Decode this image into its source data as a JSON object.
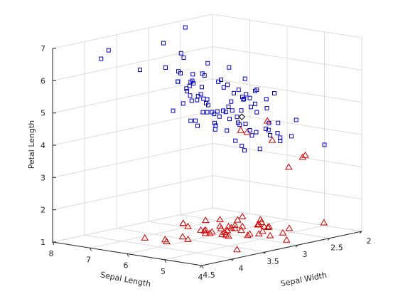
{
  "chart_data": {
    "type": "scatter",
    "title": "",
    "xlabel": "Sepal Width",
    "ylabel": "Sepal Length",
    "zlabel": "Petal Length",
    "xlim": [
      2,
      4.5
    ],
    "ylim": [
      4,
      8
    ],
    "zlim": [
      1,
      7
    ],
    "xticks": [
      "2",
      "2.5",
      "3",
      "3.5",
      "4",
      "4.5"
    ],
    "yticks": [
      "4",
      "5",
      "6",
      "7",
      "8"
    ],
    "zticks": [
      "1",
      "2",
      "3",
      "4",
      "5",
      "6",
      "7"
    ],
    "grid": true,
    "colors": {
      "series_a": "#d40000",
      "series_b": "#0000c8",
      "marker_c": "#000000",
      "axes": "#262626",
      "grid": "#dcdcdc"
    },
    "series": [
      {
        "marker": "triangle",
        "color": "#d40000",
        "points": [
          [
            2.3,
            4.5,
            1.3
          ],
          [
            3.0,
            4.4,
            1.3
          ],
          [
            3.2,
            4.4,
            1.3
          ],
          [
            2.9,
            4.4,
            1.4
          ],
          [
            3.6,
            4.6,
            1.0
          ],
          [
            3.1,
            4.6,
            1.5
          ],
          [
            3.4,
            4.6,
            1.4
          ],
          [
            3.2,
            4.6,
            1.4
          ],
          [
            3.0,
            4.8,
            1.4
          ],
          [
            3.4,
            4.8,
            1.6
          ],
          [
            3.4,
            4.8,
            1.9
          ],
          [
            3.1,
            4.8,
            1.6
          ],
          [
            3.0,
            4.9,
            1.4
          ],
          [
            3.1,
            4.9,
            1.5
          ],
          [
            3.6,
            4.9,
            1.4
          ],
          [
            3.5,
            5.0,
            1.6
          ],
          [
            3.3,
            5.0,
            1.4
          ],
          [
            3.2,
            5.0,
            1.2
          ],
          [
            3.0,
            5.0,
            1.6
          ],
          [
            3.4,
            5.0,
            1.5
          ],
          [
            3.4,
            5.0,
            1.6
          ],
          [
            3.5,
            5.1,
            1.4
          ],
          [
            3.8,
            5.1,
            1.5
          ],
          [
            3.7,
            5.1,
            1.5
          ],
          [
            3.3,
            5.1,
            1.7
          ],
          [
            3.8,
            5.1,
            1.9
          ],
          [
            3.5,
            5.2,
            1.5
          ],
          [
            3.4,
            5.2,
            1.4
          ],
          [
            3.7,
            5.3,
            1.5
          ],
          [
            3.4,
            5.4,
            1.5
          ],
          [
            3.9,
            5.4,
            1.3
          ],
          [
            3.7,
            5.4,
            1.5
          ],
          [
            3.4,
            5.4,
            1.7
          ],
          [
            3.9,
            5.4,
            1.7
          ],
          [
            4.2,
            5.5,
            1.4
          ],
          [
            3.5,
            5.5,
            1.3
          ],
          [
            3.8,
            5.7,
            1.7
          ],
          [
            4.4,
            5.7,
            1.5
          ],
          [
            4.0,
            5.8,
            1.2
          ],
          [
            4.1,
            5.2,
            1.5
          ],
          [
            3.6,
            5.0,
            1.4
          ],
          [
            3.2,
            4.7,
            1.3
          ],
          [
            3.2,
            4.7,
            1.6
          ],
          [
            3.8,
            5.1,
            1.6
          ],
          [
            3.0,
            4.3,
            1.1
          ],
          [
            3.1,
            4.9,
            1.5
          ],
          [
            3.5,
            5.0,
            1.3
          ],
          [
            3.0,
            4.8,
            1.4
          ],
          [
            3.4,
            5.1,
            1.5
          ],
          [
            3.8,
            5.7,
            1.7
          ],
          [
            2.7,
            5.2,
            3.9
          ],
          [
            2.6,
            5.5,
            4.4
          ],
          [
            2.5,
            5.1,
            3.0
          ],
          [
            2.9,
            5.7,
            4.2
          ],
          [
            2.8,
            5.7,
            4.1
          ],
          [
            2.4,
            4.9,
            3.3
          ],
          [
            2.3,
            5.0,
            3.3
          ]
        ]
      },
      {
        "marker": "square",
        "color": "#0000c8",
        "points": [
          [
            2.2,
            6.0,
            5.0
          ],
          [
            2.2,
            6.2,
            4.5
          ],
          [
            2.3,
            6.3,
            4.4
          ],
          [
            2.0,
            5.0,
            3.5
          ],
          [
            2.4,
            5.5,
            3.8
          ],
          [
            2.4,
            5.5,
            3.7
          ],
          [
            2.5,
            6.3,
            4.9
          ],
          [
            2.5,
            5.6,
            3.9
          ],
          [
            2.5,
            4.9,
            4.5
          ],
          [
            2.5,
            6.7,
            5.8
          ],
          [
            2.5,
            5.7,
            5.0
          ],
          [
            2.6,
            5.8,
            4.0
          ],
          [
            2.6,
            7.7,
            6.9
          ],
          [
            2.6,
            6.1,
            5.6
          ],
          [
            2.7,
            5.8,
            4.1
          ],
          [
            2.7,
            5.8,
            5.1
          ],
          [
            2.7,
            6.0,
            5.1
          ],
          [
            2.7,
            6.3,
            4.9
          ],
          [
            2.8,
            6.5,
            4.6
          ],
          [
            2.8,
            6.1,
            4.7
          ],
          [
            2.8,
            6.8,
            4.8
          ],
          [
            2.8,
            7.4,
            6.1
          ],
          [
            2.8,
            5.8,
            5.1
          ],
          [
            2.8,
            6.4,
            5.6
          ],
          [
            2.9,
            6.6,
            4.6
          ],
          [
            2.9,
            6.1,
            4.7
          ],
          [
            2.9,
            6.4,
            4.3
          ],
          [
            2.9,
            6.0,
            4.5
          ],
          [
            2.9,
            6.3,
            5.6
          ],
          [
            2.9,
            7.3,
            6.3
          ],
          [
            3.0,
            5.9,
            4.2
          ],
          [
            3.0,
            5.6,
            4.5
          ],
          [
            3.0,
            6.7,
            5.0
          ],
          [
            3.0,
            7.2,
            5.8
          ],
          [
            3.0,
            6.1,
            4.6
          ],
          [
            3.0,
            6.5,
            5.8
          ],
          [
            3.0,
            7.6,
            6.6
          ],
          [
            3.0,
            6.8,
            5.5
          ],
          [
            3.0,
            6.0,
            4.8
          ],
          [
            3.1,
            6.7,
            4.4
          ],
          [
            3.1,
            6.9,
            4.9
          ],
          [
            3.1,
            6.7,
            5.6
          ],
          [
            3.1,
            6.4,
            5.5
          ],
          [
            3.2,
            5.9,
            4.8
          ],
          [
            3.2,
            6.4,
            4.5
          ],
          [
            3.2,
            7.2,
            6.0
          ],
          [
            3.2,
            6.8,
            5.9
          ],
          [
            3.3,
            6.3,
            6.0
          ],
          [
            3.3,
            6.7,
            5.7
          ],
          [
            3.4,
            6.2,
            5.4
          ],
          [
            3.4,
            6.3,
            5.6
          ],
          [
            3.6,
            7.2,
            6.1
          ],
          [
            3.8,
            7.7,
            6.7
          ],
          [
            3.8,
            7.9,
            6.4
          ],
          [
            2.6,
            5.7,
            3.5
          ],
          [
            2.7,
            6.1,
            5.3
          ],
          [
            2.9,
            5.6,
            3.6
          ],
          [
            3.0,
            5.4,
            4.5
          ],
          [
            3.3,
            6.7,
            5.7
          ],
          [
            2.3,
            6.3,
            5.1
          ],
          [
            2.4,
            5.8,
            4.2
          ],
          [
            2.2,
            5.9,
            4.1
          ],
          [
            2.9,
            6.7,
            5.0
          ],
          [
            3.0,
            6.6,
            5.2
          ],
          [
            3.0,
            6.9,
            5.4
          ],
          [
            3.1,
            6.5,
            5.2
          ],
          [
            3.2,
            7.0,
            4.7
          ],
          [
            3.4,
            6.0,
            4.5
          ],
          [
            3.0,
            6.3,
            4.7
          ],
          [
            2.8,
            6.2,
            4.8
          ],
          [
            2.9,
            6.6,
            5.0
          ],
          [
            2.5,
            6.0,
            5.2
          ],
          [
            2.7,
            5.9,
            5.2
          ],
          [
            2.6,
            7.1,
            5.9
          ],
          [
            3.2,
            6.5,
            5.1
          ],
          [
            3.3,
            5.7,
            4.4
          ],
          [
            2.8,
            5.6,
            4.9
          ],
          [
            2.9,
            7.0,
            5.5
          ],
          [
            2.7,
            6.5,
            5.3
          ],
          [
            3.0,
            5.5,
            3.8
          ],
          [
            2.5,
            6.0,
            4.8
          ],
          [
            2.8,
            5.9,
            4.3
          ],
          [
            3.1,
            6.8,
            5.3
          ],
          [
            2.4,
            5.2,
            3.9
          ],
          [
            3.0,
            6.2,
            4.3
          ],
          [
            2.6,
            6.4,
            5.1
          ],
          [
            3.2,
            6.2,
            4.8
          ],
          [
            2.9,
            5.8,
            4.6
          ],
          [
            2.8,
            6.9,
            5.7
          ],
          [
            2.7,
            5.3,
            4.2
          ],
          [
            3.1,
            5.5,
            4.0
          ],
          [
            2.7,
            6.4,
            5.4
          ],
          [
            2.5,
            5.4,
            4.0
          ],
          [
            2.6,
            6.2,
            4.6
          ],
          [
            2.8,
            5.2,
            4.3
          ],
          [
            3.0,
            6.4,
            4.9
          ],
          [
            2.9,
            5.4,
            4.1
          ]
        ]
      },
      {
        "marker": "diamond",
        "color": "#000000",
        "points": [
          [
            3.0,
            5.5,
            4.7
          ]
        ]
      }
    ]
  }
}
